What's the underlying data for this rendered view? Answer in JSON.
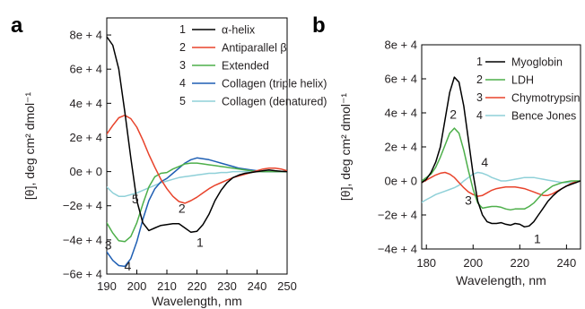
{
  "chart_data": [
    {
      "panel": "a",
      "type": "line",
      "xlabel": "Wavelength, nm",
      "ylabel": "[θ], deg cm² dmol⁻¹",
      "xlim": [
        190,
        250
      ],
      "ylim": [
        -60000,
        90000
      ],
      "xticks": [
        190,
        200,
        210,
        220,
        230,
        240,
        250
      ],
      "yticks": [
        {
          "value": 80000,
          "label": "8e + 4"
        },
        {
          "value": 60000,
          "label": "6e + 4"
        },
        {
          "value": 40000,
          "label": "4e + 4"
        },
        {
          "value": 20000,
          "label": "2e + 4"
        },
        {
          "value": 0,
          "label": "0e + 0"
        },
        {
          "value": -20000,
          "label": "−2e + 4"
        },
        {
          "value": -40000,
          "label": "−4e + 4"
        },
        {
          "value": -60000,
          "label": "−6e + 4"
        }
      ],
      "legend_position": "top-right",
      "series": [
        {
          "num": "1",
          "name": "α-helix",
          "color": "#000000",
          "x": [
            190,
            192,
            194,
            196,
            198,
            200,
            202,
            204,
            206,
            208,
            210,
            212,
            214,
            216,
            218,
            220,
            222,
            224,
            226,
            228,
            230,
            232,
            234,
            236,
            238,
            240,
            242,
            244,
            246,
            248,
            250
          ],
          "y": [
            79000,
            74000,
            60000,
            35000,
            8000,
            -17000,
            -30000,
            -34500,
            -33000,
            -31500,
            -31000,
            -30500,
            -30500,
            -33000,
            -35500,
            -35000,
            -31000,
            -25000,
            -17000,
            -11000,
            -6500,
            -3500,
            -2000,
            -1000,
            -500,
            0,
            500,
            1000,
            500,
            200,
            0
          ]
        },
        {
          "num": "2",
          "name": "Antiparallel β",
          "color": "#e8432b",
          "x": [
            190,
            192,
            194,
            196,
            198,
            200,
            202,
            204,
            206,
            208,
            210,
            212,
            214,
            216,
            218,
            220,
            222,
            224,
            226,
            228,
            230,
            232,
            234,
            236,
            238,
            240,
            242,
            244,
            246,
            248,
            250
          ],
          "y": [
            22000,
            27000,
            31500,
            33000,
            31000,
            26000,
            18500,
            10000,
            2500,
            -4500,
            -10000,
            -14500,
            -17500,
            -18500,
            -17000,
            -15000,
            -12500,
            -10000,
            -8000,
            -6500,
            -5000,
            -3500,
            -2500,
            -1500,
            -500,
            500,
            1500,
            2000,
            2000,
            1500,
            500
          ]
        },
        {
          "num": "3",
          "name": "Extended",
          "color": "#4daf4a",
          "x": [
            190,
            192,
            194,
            196,
            198,
            200,
            202,
            204,
            206,
            208,
            210,
            212,
            214,
            216,
            218,
            220,
            222,
            224,
            226,
            228,
            230,
            232,
            234,
            236,
            238,
            240,
            242,
            244,
            246,
            248,
            250
          ],
          "y": [
            -30000,
            -36000,
            -40500,
            -41000,
            -38000,
            -30000,
            -19000,
            -9000,
            -3000,
            -1000,
            -500,
            1500,
            3000,
            4500,
            5000,
            5000,
            4500,
            4000,
            3500,
            3000,
            2500,
            2000,
            1500,
            1000,
            500,
            0,
            0,
            0,
            0,
            0,
            0
          ]
        },
        {
          "num": "4",
          "name": "Collagen (triple helix)",
          "color": "#1f5fb4",
          "x": [
            190,
            192,
            194,
            196,
            198,
            200,
            202,
            204,
            206,
            208,
            210,
            212,
            214,
            216,
            218,
            220,
            222,
            224,
            226,
            228,
            230,
            232,
            234,
            236,
            238,
            240,
            242,
            244,
            246,
            248,
            250
          ],
          "y": [
            -47000,
            -52000,
            -55000,
            -55500,
            -51000,
            -41000,
            -28000,
            -17000,
            -10000,
            -6000,
            -4000,
            -1000,
            2000,
            5000,
            7000,
            8000,
            7500,
            7000,
            6000,
            5000,
            4000,
            3000,
            2000,
            1500,
            1000,
            500,
            0,
            0,
            0,
            0,
            0
          ]
        },
        {
          "num": "5",
          "name": "Collagen (denatured)",
          "color": "#8fd0d8",
          "x": [
            190,
            192,
            194,
            196,
            198,
            200,
            202,
            204,
            206,
            208,
            210,
            212,
            214,
            216,
            218,
            220,
            222,
            224,
            226,
            228,
            230,
            232,
            234,
            236,
            238,
            240,
            242,
            244,
            246,
            248,
            250
          ],
          "y": [
            -9000,
            -12500,
            -14500,
            -14500,
            -13500,
            -12500,
            -11000,
            -9500,
            -8000,
            -6500,
            -5500,
            -4500,
            -3500,
            -3000,
            -2500,
            -2000,
            -1500,
            -1000,
            -1000,
            -500,
            -500,
            0,
            0,
            0,
            0,
            0,
            0,
            0,
            0,
            0,
            0
          ]
        }
      ],
      "annotations": [
        {
          "text": "1",
          "x": 221,
          "y": -44000
        },
        {
          "text": "2",
          "x": 215,
          "y": -24000
        },
        {
          "text": "3",
          "x": 190.5,
          "y": -45500
        },
        {
          "text": "4",
          "x": 197,
          "y": -58000
        },
        {
          "text": "5",
          "x": 199.5,
          "y": -18500
        }
      ]
    },
    {
      "panel": "b",
      "type": "line",
      "xlabel": "Wavelength, nm",
      "ylabel": "[θ], deg cm² dmol⁻¹",
      "xlim": [
        178,
        246
      ],
      "ylim": [
        -40000,
        80000
      ],
      "xticks": [
        180,
        200,
        220,
        240
      ],
      "yticks": [
        {
          "value": 80000,
          "label": "8e + 4"
        },
        {
          "value": 60000,
          "label": "6e + 4"
        },
        {
          "value": 40000,
          "label": "4e + 4"
        },
        {
          "value": 20000,
          "label": "2e + 4"
        },
        {
          "value": 0,
          "label": "0e + 0"
        },
        {
          "value": -20000,
          "label": "−2e + 4"
        },
        {
          "value": -40000,
          "label": "−4e + 4"
        }
      ],
      "legend_position": "top-right",
      "series": [
        {
          "num": "1",
          "name": "Myoglobin",
          "color": "#000000",
          "x": [
            178,
            180,
            182,
            184,
            186,
            188,
            190,
            192,
            194,
            196,
            198,
            200,
            202,
            204,
            206,
            208,
            210,
            212,
            214,
            216,
            218,
            220,
            222,
            224,
            226,
            228,
            230,
            232,
            234,
            236,
            238,
            240,
            242,
            244,
            246
          ],
          "y": [
            -1000,
            1000,
            5000,
            11000,
            20000,
            36000,
            52000,
            61000,
            58000,
            44000,
            24000,
            4000,
            -12000,
            -20000,
            -24000,
            -25000,
            -25000,
            -24500,
            -25500,
            -26000,
            -25000,
            -25500,
            -27000,
            -26500,
            -24000,
            -20000,
            -16000,
            -12000,
            -9000,
            -6500,
            -4500,
            -3000,
            -2000,
            -1000,
            0
          ]
        },
        {
          "num": "2",
          "name": "LDH",
          "color": "#4daf4a",
          "x": [
            178,
            180,
            182,
            184,
            186,
            188,
            190,
            192,
            194,
            196,
            198,
            200,
            202,
            204,
            206,
            208,
            210,
            212,
            214,
            216,
            218,
            220,
            222,
            224,
            226,
            228,
            230,
            232,
            234,
            236,
            238,
            240,
            242,
            244,
            246
          ],
          "y": [
            0,
            2000,
            4000,
            8000,
            14000,
            21000,
            28000,
            31000,
            28000,
            18000,
            6000,
            -5000,
            -13000,
            -16000,
            -15500,
            -15000,
            -15000,
            -15500,
            -16500,
            -17000,
            -16500,
            -16500,
            -16500,
            -15000,
            -13000,
            -10000,
            -7000,
            -5000,
            -3000,
            -2000,
            -1000,
            -500,
            0,
            0,
            0
          ]
        },
        {
          "num": "3",
          "name": "Chymotrypsin",
          "color": "#e8432b",
          "x": [
            178,
            180,
            182,
            184,
            186,
            188,
            190,
            192,
            194,
            196,
            198,
            200,
            202,
            204,
            206,
            208,
            210,
            212,
            214,
            216,
            218,
            220,
            222,
            224,
            226,
            228,
            230,
            232,
            234,
            236,
            238,
            240,
            242,
            244,
            246
          ],
          "y": [
            -1000,
            500,
            2000,
            3500,
            4500,
            5000,
            4000,
            2000,
            -1000,
            -4000,
            -6500,
            -8000,
            -9000,
            -8500,
            -7000,
            -5500,
            -4500,
            -4000,
            -3500,
            -3500,
            -3500,
            -4000,
            -4500,
            -5500,
            -6500,
            -7500,
            -8500,
            -8500,
            -7500,
            -6000,
            -4500,
            -3000,
            -1500,
            -500,
            0
          ]
        },
        {
          "num": "4",
          "name": "Bence Jones",
          "color": "#8fd0d8",
          "x": [
            178,
            180,
            182,
            184,
            186,
            188,
            190,
            192,
            194,
            196,
            198,
            200,
            202,
            204,
            206,
            208,
            210,
            212,
            214,
            216,
            218,
            220,
            222,
            224,
            226,
            228,
            230,
            232,
            234,
            236,
            238,
            240,
            242,
            244,
            246
          ],
          "y": [
            -12500,
            -11000,
            -9500,
            -8000,
            -7000,
            -6000,
            -5000,
            -4000,
            -2500,
            0,
            2000,
            4000,
            5000,
            4500,
            3500,
            2000,
            1000,
            0,
            0,
            500,
            1000,
            1500,
            2000,
            2000,
            2000,
            1500,
            1000,
            500,
            0,
            -500,
            -1000,
            -1000,
            -1000,
            -500,
            0
          ]
        }
      ],
      "annotations": [
        {
          "text": "1",
          "x": 227.5,
          "y": -36500
        },
        {
          "text": "2",
          "x": 191.5,
          "y": 36500
        },
        {
          "text": "3",
          "x": 198,
          "y": -14000
        },
        {
          "text": "4",
          "x": 205,
          "y": 8500
        }
      ]
    }
  ]
}
